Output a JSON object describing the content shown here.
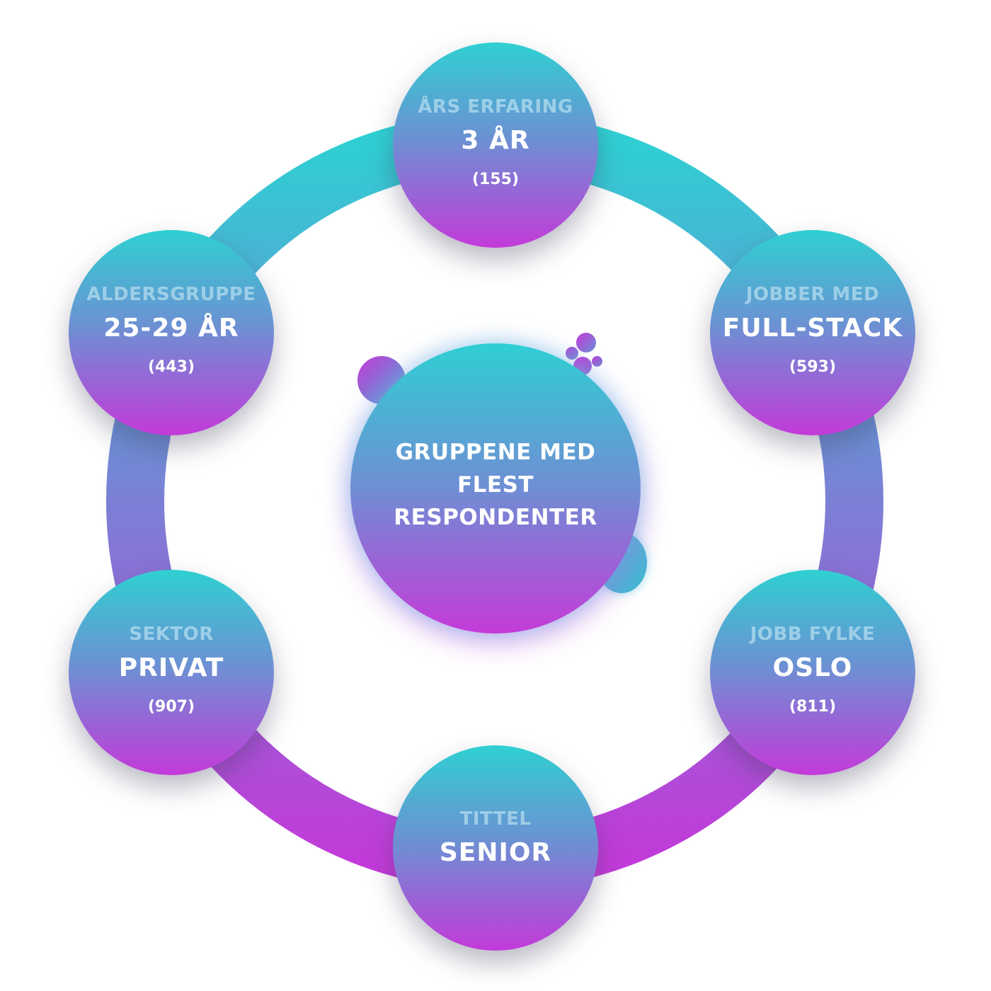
{
  "center": {
    "title": "GRUPPENE MED FLEST RESPONDENTER"
  },
  "nodes": [
    {
      "category": "ÅRS ERFARING",
      "value": "3 ÅR",
      "count": "(155)"
    },
    {
      "category": "JOBBER MED",
      "value": "FULL-STACK",
      "count": "(593)"
    },
    {
      "category": "JOBB FYLKE",
      "value": "OSLO",
      "count": "(811)"
    },
    {
      "category": "TITTEL",
      "value": "SENIOR",
      "count": ""
    },
    {
      "category": "SEKTOR",
      "value": "PRIVAT",
      "count": "(907)"
    },
    {
      "category": "ALDERSGRUPPE",
      "value": "25-29 ÅR",
      "count": "(443)"
    }
  ],
  "colors": {
    "gradient_top": "#2fd0d2",
    "gradient_mid": "#6e8fd3",
    "gradient_bottom": "#c33ad9",
    "category_text": "#c8e8f5",
    "value_text": "#ffffff"
  }
}
